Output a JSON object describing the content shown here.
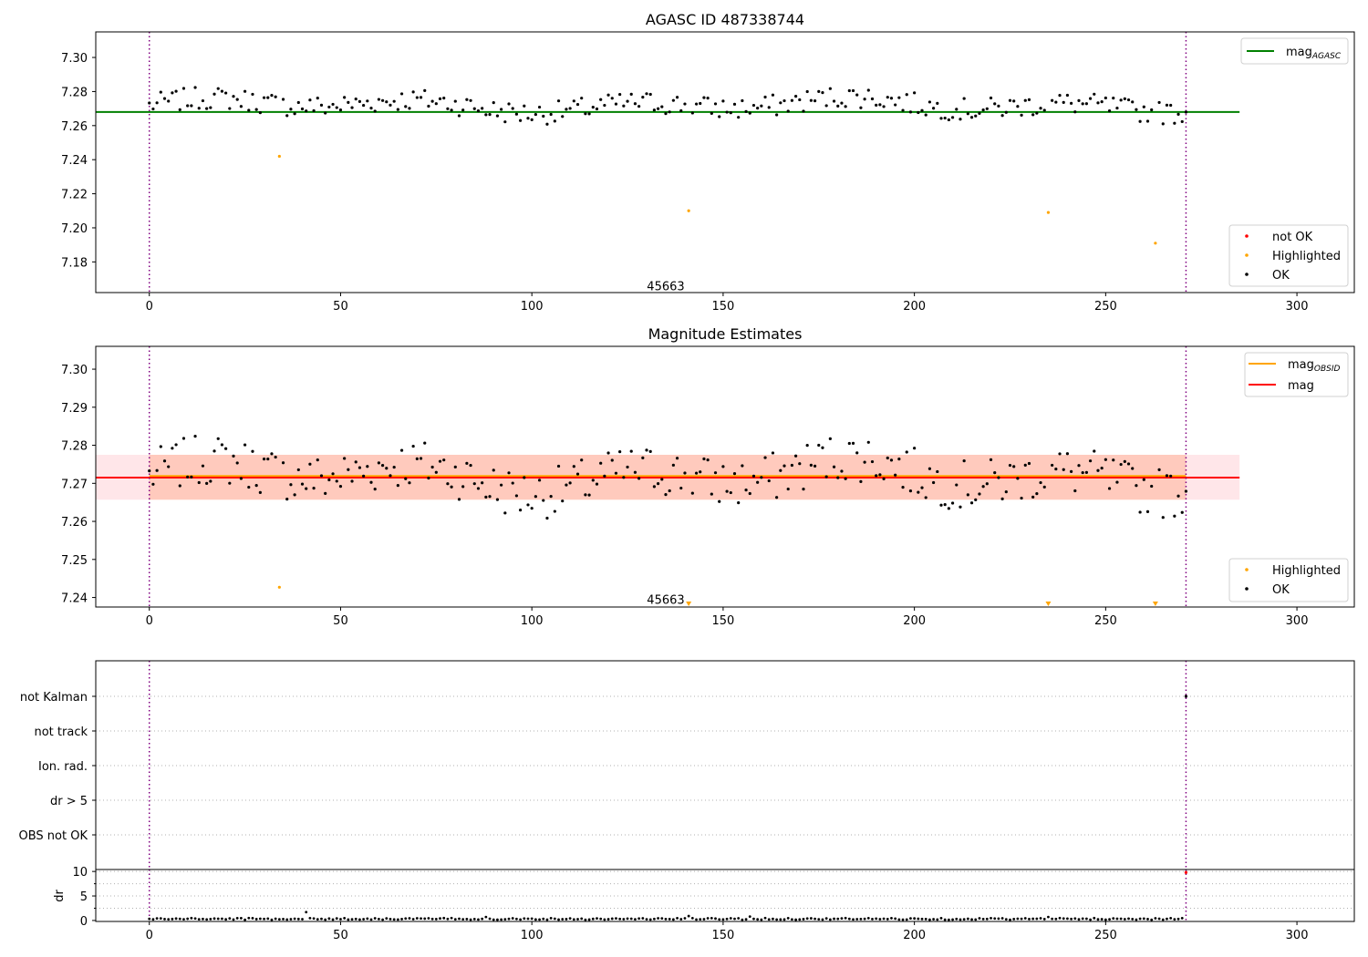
{
  "chart_data": [
    {
      "type": "scatter",
      "title": "AGASC ID 487338744",
      "xlim": [
        -14,
        315
      ],
      "ylim": [
        7.162,
        7.315
      ],
      "xticks": [
        0,
        50,
        100,
        150,
        200,
        250,
        300
      ],
      "yticks": [
        7.18,
        7.2,
        7.22,
        7.24,
        7.26,
        7.28,
        7.3
      ],
      "ytick_decimals": 2,
      "reference_line": {
        "name": "mag_AGASC",
        "value": 7.268,
        "x_range": [
          -14,
          285
        ],
        "color": "#008000"
      },
      "obsid_boundaries": [
        0,
        271
      ],
      "obsid_label": {
        "text": "45663",
        "x": 135,
        "y": 7.166
      },
      "highlighted_points": [
        {
          "x": 34,
          "y": 7.242
        },
        {
          "x": 141,
          "y": 7.21
        },
        {
          "x": 235,
          "y": 7.209
        },
        {
          "x": 263,
          "y": 7.191
        }
      ],
      "legend_upper": [
        {
          "label": "mag",
          "sub": "AGASC",
          "color": "#008000",
          "kind": "line"
        }
      ],
      "legend_lower": [
        {
          "label": "not OK",
          "color": "#ff0000",
          "kind": "dot"
        },
        {
          "label": "Highlighted",
          "color": "#ffa500",
          "kind": "dot"
        },
        {
          "label": "OK",
          "color": "#000000",
          "kind": "dot"
        }
      ]
    },
    {
      "type": "scatter",
      "title": "Magnitude Estimates",
      "xlim": [
        -14,
        315
      ],
      "ylim": [
        7.2375,
        7.306
      ],
      "xticks": [
        0,
        50,
        100,
        150,
        200,
        250,
        300
      ],
      "yticks": [
        7.24,
        7.25,
        7.26,
        7.27,
        7.28,
        7.29,
        7.3
      ],
      "ytick_decimals": 2,
      "mag_line": {
        "value": 7.2715,
        "x_range": [
          -14,
          285
        ],
        "color": "#ff0000"
      },
      "mag_band": {
        "lo": 7.2657,
        "hi": 7.2775,
        "x_range": [
          -14,
          285
        ],
        "color": "#ffb6c1"
      },
      "mag_obsid_line": {
        "value": 7.2718,
        "x_range": [
          0,
          271
        ],
        "color": "#ffa500"
      },
      "mag_obsid_band": {
        "lo": 7.2657,
        "hi": 7.2775,
        "x_range": [
          0,
          271
        ],
        "color": "#ffa07a"
      },
      "obsid_boundaries": [
        0,
        271
      ],
      "obsid_label": {
        "text": "45663",
        "x": 135,
        "y": 7.2395
      },
      "highlighted_points": [
        {
          "x": 34,
          "y": 7.2427
        }
      ],
      "offscale_markers": [
        141,
        235,
        263
      ],
      "legend_upper": [
        {
          "label": "mag",
          "sub": "OBSID",
          "color": "#ffa500",
          "kind": "line"
        },
        {
          "label": "mag",
          "sub": "",
          "color": "#ff0000",
          "kind": "line"
        }
      ],
      "legend_lower": [
        {
          "label": "Highlighted",
          "color": "#ffa500",
          "kind": "dot"
        },
        {
          "label": "OK",
          "color": "#000000",
          "kind": "dot"
        }
      ]
    },
    {
      "type": "scatter",
      "title": "",
      "xlim": [
        -14,
        315
      ],
      "xticks": [
        0,
        50,
        100,
        150,
        200,
        250,
        300
      ],
      "flag_rows": [
        "not Kalman",
        "not track",
        "Ion. rad.",
        "dr > 5",
        "OBS not OK"
      ],
      "flag_points": [
        {
          "x": 271,
          "row": "not Kalman"
        }
      ],
      "dr": {
        "ylabel": "dr",
        "ylim": [
          -0.2,
          10.4
        ],
        "yticks": [
          0,
          5,
          10
        ],
        "minor_ticks": [
          2.5,
          7.5
        ],
        "spikes": [
          {
            "x": 41,
            "y": 1.7
          },
          {
            "x": 88,
            "y": 0.7
          },
          {
            "x": 141,
            "y": 0.9
          },
          {
            "x": 157,
            "y": 0.8
          },
          {
            "x": 235,
            "y": 0.7
          }
        ],
        "outlier": {
          "x": 271,
          "y": 9.8
        }
      }
    }
  ]
}
